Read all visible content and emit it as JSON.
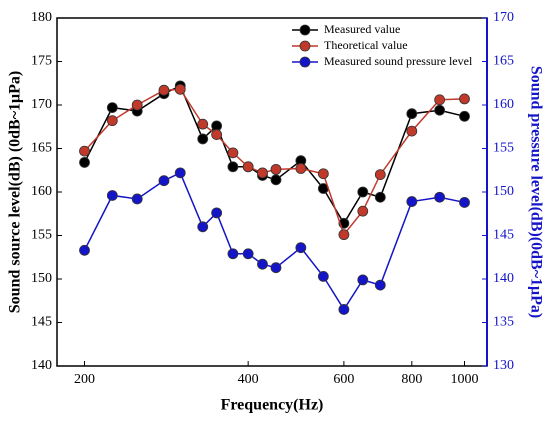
{
  "chart_data": {
    "type": "line",
    "x_label": "Frequency(Hz)",
    "y_label": "Sound source level(dB) (0dB~1μPa)",
    "y2_label": "Sound pressure level(dB)(0dB~1μPa)",
    "x": [
      200,
      225,
      250,
      280,
      300,
      330,
      350,
      375,
      400,
      425,
      450,
      500,
      550,
      600,
      650,
      700,
      800,
      900,
      1000
    ],
    "xlim": [
      178,
      1100
    ],
    "xscale": "log",
    "xticks": [
      200,
      400,
      600,
      800,
      1000
    ],
    "ylim": [
      140,
      180
    ],
    "yticks": [
      140,
      145,
      150,
      155,
      160,
      165,
      170,
      175,
      180
    ],
    "y2lim": [
      130,
      170
    ],
    "y2ticks": [
      130,
      135,
      140,
      145,
      150,
      155,
      160,
      165,
      170
    ],
    "legend": "upper right",
    "series": [
      {
        "name": "Measured value",
        "color": "#000000",
        "values": [
          163.4,
          169.7,
          169.3,
          171.3,
          172.2,
          166.1,
          167.6,
          162.9,
          162.9,
          161.9,
          161.4,
          163.6,
          160.4,
          156.4,
          160.0,
          159.4,
          169.0,
          169.4,
          168.7
        ]
      },
      {
        "name": "Theoretical value",
        "color": "#c0392b",
        "values": [
          164.7,
          168.2,
          170.0,
          171.7,
          171.8,
          167.8,
          166.6,
          164.5,
          162.9,
          162.2,
          162.6,
          162.7,
          162.1,
          155.1,
          157.8,
          162.0,
          167.0,
          170.6,
          170.7
        ]
      },
      {
        "name": "Measured sound pressure level",
        "color": "#1414c8",
        "axis": "y2",
        "values": [
          143.3,
          149.6,
          149.2,
          151.3,
          152.2,
          146.0,
          147.6,
          142.9,
          142.9,
          141.7,
          141.3,
          143.6,
          140.3,
          136.5,
          139.9,
          139.3,
          148.9,
          149.4,
          148.8
        ]
      }
    ]
  }
}
